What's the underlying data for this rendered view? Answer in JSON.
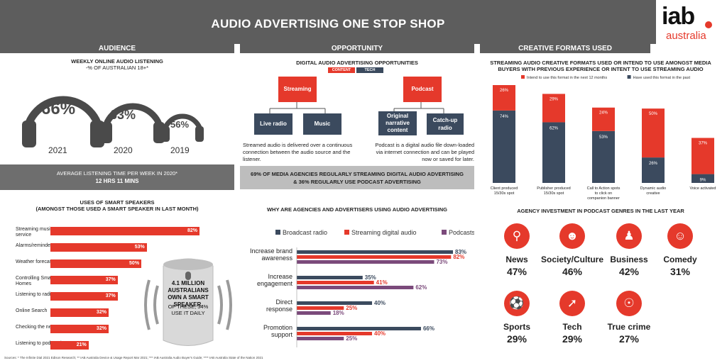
{
  "title": "AUDIO ADVERTISING ONE STOP SHOP",
  "logo": {
    "main": "iab",
    "sub": "australia"
  },
  "sections": {
    "audience": "AUDIENCE",
    "opportunity": "OPPORTUNITY",
    "creative": "CREATIVE FORMATS USED"
  },
  "audience": {
    "weekly_title": "WEEKLY ONLINE AUDIO LISTENING",
    "weekly_sub": "-% OF AUSTRALIAN 18+*",
    "headphones": [
      {
        "pct": "66%",
        "year": "2021"
      },
      {
        "pct": "63%",
        "year": "2020"
      },
      {
        "pct": "56%",
        "year": "2019"
      }
    ],
    "avg_title": "AVERAGE LISTENING TIME PER WEEK IN 2020*",
    "avg_value": "12 HRS 11 MINS",
    "smart_title": "USES OF SMART SPEAKERS",
    "smart_sub": "(AMONGST THOSE USED A SMART SPEAKER IN LAST MONTH)",
    "smart_uses": [
      {
        "label": "Streaming music service",
        "pct": "82%",
        "value": 82
      },
      {
        "label": "Alarms/reminders",
        "pct": "53%",
        "value": 53
      },
      {
        "label": "Weather forecast",
        "pct": "50%",
        "value": 50
      },
      {
        "label": "Controlling Smart Homes",
        "pct": "37%",
        "value": 37
      },
      {
        "label": "Listening to radio",
        "pct": "37%",
        "value": 37
      },
      {
        "label": "Online Search",
        "pct": "32%",
        "value": 32
      },
      {
        "label": "Checking the news",
        "pct": "32%",
        "value": 32
      },
      {
        "label": "Listening to podcast/s",
        "pct": "21%",
        "value": 21
      }
    ],
    "speaker_text_1": "4.1 MILLION AUSTRALIANS OWN A SMART SPEAKER.",
    "speaker_text_2": "OF THESE, 34% USE IT DAILY"
  },
  "opportunity": {
    "title": "DIGITAL AUDIO ADVERTISING OPPORTUNITIES",
    "legend_content": "CONTENT",
    "legend_tech": "TECH",
    "streaming": "Streaming",
    "live_radio": "Live radio",
    "music": "Music",
    "podcast": "Podcast",
    "original": "Original narrative content",
    "catchup": "Catch-up radio",
    "streaming_desc": "Streamed audio is delivered over a continuous connection between the audio source and the listener.",
    "podcast_desc": "Podcast is a digital audio file down-loaded via internet connection and can be played now or saved for later.",
    "agencies_1": "69% OF MEDIA AGENCIES REGULARLY STREAMING DIGITAL AUDIO ADVERTISING",
    "agencies_2": "& 36% REGULARLY USE PODCAST ADVERTISING",
    "why_title": "WHY ARE AGENCIES AND ADVERTISERS USING AUDIO ADVERTISING"
  },
  "creative": {
    "title_1": "STREAMING AUDIO CREATIVE FORMATS USED OR INTEND TO USE AMONGST MEDIA",
    "title_2": "BUYERS WITH PREVIOUS EXPERIENCE OR INTENT TO USE STREAMING AUDIO",
    "genre_title": "AGENCY INVESTMENT IN PODCAST GENRES IN THE LAST YEAR",
    "genres": [
      {
        "name": "News",
        "pct": "47%",
        "icon": "search-icon"
      },
      {
        "name": "Society/Culture",
        "pct": "46%",
        "icon": "people-icon"
      },
      {
        "name": "Business",
        "pct": "42%",
        "icon": "business-person-icon"
      },
      {
        "name": "Comedy",
        "pct": "31%",
        "icon": "smiley-icon"
      },
      {
        "name": "Sports",
        "pct": "29%",
        "icon": "ball-icon"
      },
      {
        "name": "Tech",
        "pct": "29%",
        "icon": "cursor-icon"
      },
      {
        "name": "True crime",
        "pct": "27%",
        "icon": "fingerprint-icon"
      }
    ]
  },
  "colors": {
    "red": "#e5392b",
    "navy": "#3b4a5e",
    "purple": "#7b4a7b",
    "grey": "#5d5d5d"
  },
  "sources": "Sources: * The Infinite Dial 2021 Edison Research; ** IAB Australia Device & Usage Report Mar 2021; *** IAB Australia Audio Buyer's Guide; **** IAB Australia State of the Nation 2021",
  "chart_data": [
    {
      "type": "bar",
      "orientation": "horizontal",
      "title": "",
      "categories": [
        "Increase brand awareness",
        "Increase engagement",
        "Direct response",
        "Promotion support"
      ],
      "series": [
        {
          "name": "Broadcast radio",
          "values": [
            83,
            35,
            40,
            66
          ],
          "color": "#3b4a5e"
        },
        {
          "name": "Streaming digital audio",
          "values": [
            82,
            41,
            25,
            40
          ],
          "color": "#e5392b"
        },
        {
          "name": "Podcasts",
          "values": [
            73,
            62,
            18,
            25
          ],
          "color": "#7b4a7b"
        }
      ],
      "legend": "top"
    },
    {
      "type": "bar",
      "stacked": true,
      "title": "",
      "categories": [
        "Client produced 15/30s spot",
        "Publisher produced 15/30s spot",
        "Call to Action spots to click on companion banner",
        "Dynamic audio creative",
        "Voice activated"
      ],
      "series": [
        {
          "name": "Have used this format in the past",
          "values": [
            74,
            62,
            53,
            26,
            9
          ],
          "color": "#3b4a5e"
        },
        {
          "name": "Intend to use this format in the next 12 months",
          "values": [
            26,
            29,
            24,
            50,
            37
          ],
          "color": "#e5392b"
        }
      ],
      "legend": "top"
    }
  ]
}
